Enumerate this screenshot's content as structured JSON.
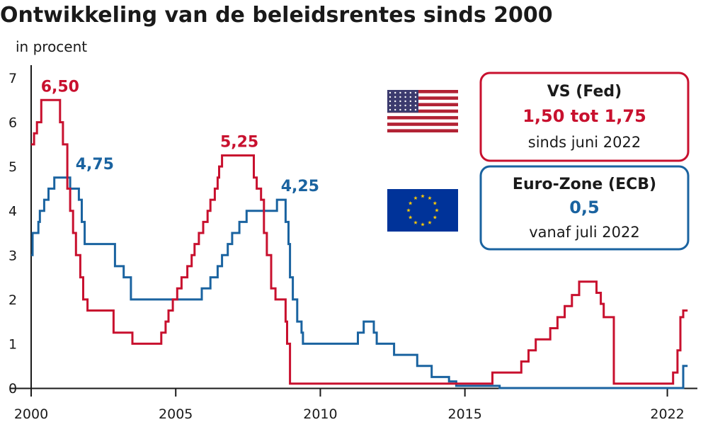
{
  "chart_data": {
    "type": "line",
    "title": "Ontwikkeling van de beleidsrentes sinds 2000",
    "subtitle": "in procent",
    "xlabel": "",
    "ylabel": "",
    "xlim": [
      2000.0,
      2022.5
    ],
    "ylim": [
      0,
      7
    ],
    "grid": false,
    "x_ticks": [
      {
        "value": 2000,
        "label": "2000"
      },
      {
        "value": 2005,
        "label": "2005"
      },
      {
        "value": 2010,
        "label": "2010"
      },
      {
        "value": 2015,
        "label": "2015"
      },
      {
        "value": 2022,
        "label": "2022"
      }
    ],
    "y_ticks": [
      {
        "value": 0,
        "label": "0"
      },
      {
        "value": 1,
        "label": "1"
      },
      {
        "value": 2,
        "label": "2"
      },
      {
        "value": 3,
        "label": "3"
      },
      {
        "value": 4,
        "label": "4"
      },
      {
        "value": 5,
        "label": "5"
      },
      {
        "value": 6,
        "label": "6"
      },
      {
        "value": 7,
        "label": "7"
      }
    ],
    "series": [
      {
        "name": "VS (Fed)",
        "color": "#c8102e",
        "step": true,
        "points": [
          [
            2000.0,
            5.5
          ],
          [
            2000.1,
            5.75
          ],
          [
            2000.2,
            6.0
          ],
          [
            2000.35,
            6.5
          ],
          [
            2001.0,
            6.0
          ],
          [
            2001.1,
            5.5
          ],
          [
            2001.25,
            4.5
          ],
          [
            2001.35,
            4.0
          ],
          [
            2001.45,
            3.5
          ],
          [
            2001.55,
            3.0
          ],
          [
            2001.7,
            2.5
          ],
          [
            2001.8,
            2.0
          ],
          [
            2001.95,
            1.75
          ],
          [
            2002.85,
            1.25
          ],
          [
            2003.5,
            1.0
          ],
          [
            2004.5,
            1.25
          ],
          [
            2004.65,
            1.5
          ],
          [
            2004.75,
            1.75
          ],
          [
            2004.9,
            2.0
          ],
          [
            2005.05,
            2.25
          ],
          [
            2005.2,
            2.5
          ],
          [
            2005.4,
            2.75
          ],
          [
            2005.55,
            3.0
          ],
          [
            2005.65,
            3.25
          ],
          [
            2005.8,
            3.5
          ],
          [
            2005.95,
            3.75
          ],
          [
            2006.1,
            4.0
          ],
          [
            2006.2,
            4.25
          ],
          [
            2006.35,
            4.5
          ],
          [
            2006.45,
            4.75
          ],
          [
            2006.5,
            5.0
          ],
          [
            2006.6,
            5.25
          ],
          [
            2007.7,
            4.75
          ],
          [
            2007.8,
            4.5
          ],
          [
            2007.95,
            4.25
          ],
          [
            2008.05,
            3.5
          ],
          [
            2008.15,
            3.0
          ],
          [
            2008.3,
            2.25
          ],
          [
            2008.45,
            2.0
          ],
          [
            2008.8,
            1.5
          ],
          [
            2008.85,
            1.0
          ],
          [
            2008.95,
            0.1
          ],
          [
            2015.95,
            0.35
          ],
          [
            2016.95,
            0.6
          ],
          [
            2017.2,
            0.85
          ],
          [
            2017.45,
            1.1
          ],
          [
            2017.95,
            1.35
          ],
          [
            2018.2,
            1.6
          ],
          [
            2018.45,
            1.85
          ],
          [
            2018.7,
            2.1
          ],
          [
            2018.95,
            2.4
          ],
          [
            2019.55,
            2.15
          ],
          [
            2019.7,
            1.9
          ],
          [
            2019.8,
            1.6
          ],
          [
            2020.15,
            0.1
          ],
          [
            2022.2,
            0.35
          ],
          [
            2022.35,
            0.85
          ],
          [
            2022.45,
            1.6
          ],
          [
            2022.55,
            1.75
          ],
          [
            2022.7,
            1.75
          ]
        ]
      },
      {
        "name": "Euro-Zone (ECB)",
        "color": "#1a63a0",
        "step": true,
        "points": [
          [
            2000.0,
            3.0
          ],
          [
            2000.05,
            3.5
          ],
          [
            2000.25,
            3.75
          ],
          [
            2000.3,
            4.0
          ],
          [
            2000.45,
            4.25
          ],
          [
            2000.6,
            4.5
          ],
          [
            2000.8,
            4.75
          ],
          [
            2001.35,
            4.5
          ],
          [
            2001.65,
            4.25
          ],
          [
            2001.75,
            3.75
          ],
          [
            2001.85,
            3.25
          ],
          [
            2002.9,
            2.75
          ],
          [
            2003.2,
            2.5
          ],
          [
            2003.45,
            2.0
          ],
          [
            2005.9,
            2.25
          ],
          [
            2006.2,
            2.5
          ],
          [
            2006.45,
            2.75
          ],
          [
            2006.6,
            3.0
          ],
          [
            2006.8,
            3.25
          ],
          [
            2006.95,
            3.5
          ],
          [
            2007.2,
            3.75
          ],
          [
            2007.45,
            4.0
          ],
          [
            2008.5,
            4.25
          ],
          [
            2008.8,
            3.75
          ],
          [
            2008.9,
            3.25
          ],
          [
            2008.95,
            2.5
          ],
          [
            2009.05,
            2.0
          ],
          [
            2009.2,
            1.5
          ],
          [
            2009.35,
            1.25
          ],
          [
            2009.4,
            1.0
          ],
          [
            2011.3,
            1.25
          ],
          [
            2011.5,
            1.5
          ],
          [
            2011.85,
            1.25
          ],
          [
            2011.95,
            1.0
          ],
          [
            2012.55,
            0.75
          ],
          [
            2013.35,
            0.5
          ],
          [
            2013.85,
            0.25
          ],
          [
            2014.45,
            0.15
          ],
          [
            2014.7,
            0.05
          ],
          [
            2016.2,
            0.0
          ],
          [
            2022.55,
            0.5
          ],
          [
            2022.7,
            0.5
          ]
        ]
      }
    ],
    "annotations": [
      {
        "series": "VS (Fed)",
        "label": "6,50",
        "value": 6.5,
        "x": 2001.0
      },
      {
        "series": "VS (Fed)",
        "label": "5,25",
        "value": 5.25,
        "x": 2007.2
      },
      {
        "series": "Euro-Zone (ECB)",
        "label": "4,75",
        "value": 4.75,
        "x": 2002.2
      },
      {
        "series": "Euro-Zone (ECB)",
        "label": "4,25",
        "value": 4.25,
        "x": 2009.3
      }
    ],
    "info_boxes": [
      {
        "key": "fed",
        "title": "VS (Fed)",
        "rate": "1,50 tot 1,75",
        "since": "sinds juni 2022",
        "color": "#c8102e",
        "flag": "us-flag-icon"
      },
      {
        "key": "ecb",
        "title": "Euro-Zone (ECB)",
        "rate": "0,5",
        "since": "vanaf juli 2022",
        "color": "#1a63a0",
        "flag": "eu-flag-icon"
      }
    ]
  }
}
